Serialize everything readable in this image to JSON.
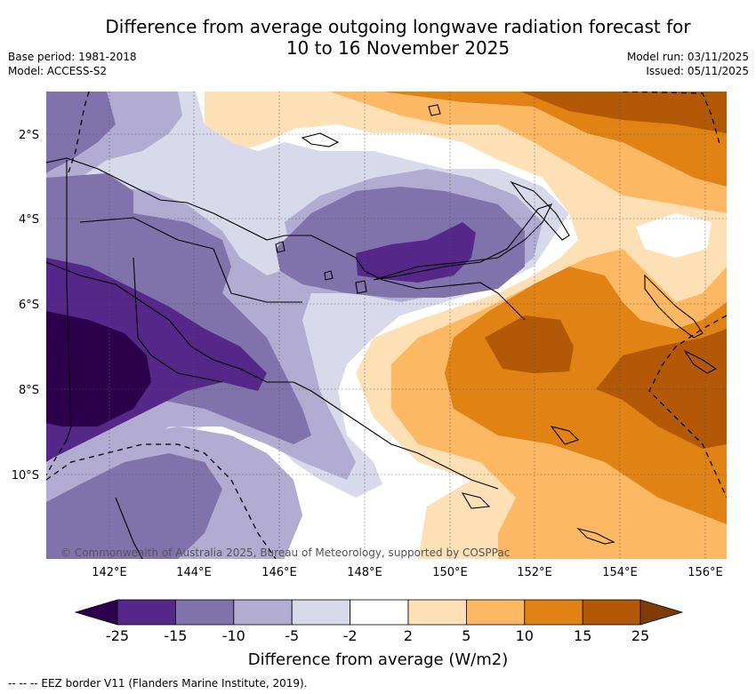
{
  "title": {
    "line1": "Difference from average outgoing longwave radiation forecast for",
    "line2": "10 to 16 November 2025"
  },
  "meta": {
    "base_period": "Base period: 1981-2018",
    "model": "Model: ACCESS-S2",
    "model_run": "Model run: 03/11/2025",
    "issued": "Issued: 05/11/2025"
  },
  "map": {
    "lat_labels": [
      "2°S",
      "4°S",
      "6°S",
      "8°S",
      "10°S"
    ],
    "lon_labels": [
      "142°E",
      "144°E",
      "146°E",
      "148°E",
      "150°E",
      "152°E",
      "154°E",
      "156°E"
    ],
    "copyright": "© Commonwealth of Australia 2025, Bureau of Meteorology, supported by COSPPac"
  },
  "colorbar": {
    "title": "Difference from average (W/m2)",
    "ticks": [
      "-25",
      "-15",
      "-10",
      "-5",
      "-2",
      "2",
      "5",
      "10",
      "15",
      "25"
    ],
    "colors": {
      "lt_-25": "#2d004b",
      "-25_-15": "#542788",
      "-15_-10": "#8073ac",
      "-10_-5": "#b2abd2",
      "-5_-2": "#d8daeb",
      "-2_2": "#ffffff",
      "2_5": "#fee0b6",
      "5_10": "#fdb863",
      "10_15": "#e08214",
      "15_25": "#b35806",
      "gt_25": "#7f3b08"
    }
  },
  "legend": {
    "eez": "--  --  -- EEZ border V11 (Flanders Marine Institute, 2019)."
  }
}
